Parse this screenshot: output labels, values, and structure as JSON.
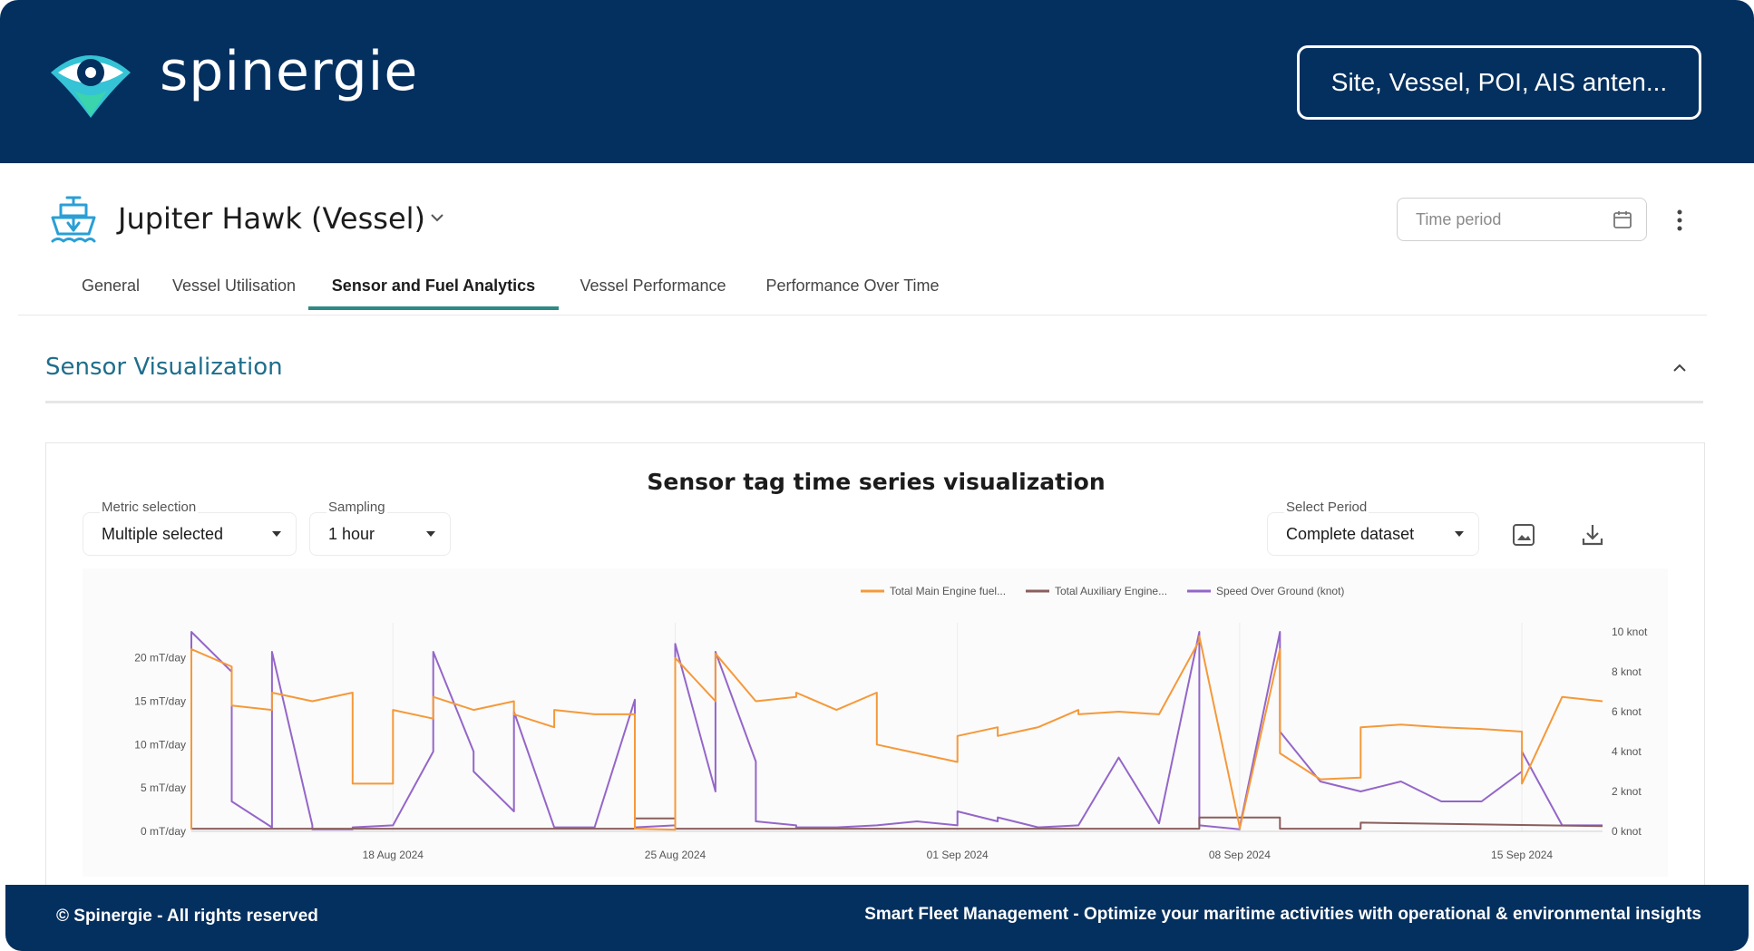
{
  "header": {
    "brand": "spinergie",
    "search_placeholder": "Site, Vessel, POI, AIS anten...",
    "logo_icon": "eye-pin-icon"
  },
  "vessel": {
    "title": "Jupiter Hawk (Vessel)",
    "icon": "ship-icon",
    "time_period_placeholder": "Time period"
  },
  "tabs": [
    {
      "label": "General",
      "active": false
    },
    {
      "label": "Vessel Utilisation",
      "active": false
    },
    {
      "label": "Sensor and Fuel Analytics",
      "active": true
    },
    {
      "label": "Vessel Performance",
      "active": false
    },
    {
      "label": "Performance Over Time",
      "active": false
    }
  ],
  "section": {
    "title": "Sensor Visualization"
  },
  "card": {
    "title": "Sensor tag time series visualization",
    "metric": {
      "label": "Metric selection",
      "value": "Multiple selected"
    },
    "sampling": {
      "label": "Sampling",
      "value": "1 hour"
    },
    "period": {
      "label": "Select Period",
      "value": "Complete dataset"
    }
  },
  "chart_data": {
    "type": "line",
    "legend_position": "top-right",
    "grid": "vertical",
    "x_ticks": [
      "18 Aug 2024",
      "25 Aug 2024",
      "01 Sep 2024",
      "08 Sep 2024",
      "15 Sep 2024"
    ],
    "x_range": [
      "2024-08-13",
      "2024-09-17"
    ],
    "y_left": {
      "ticks": [
        "0 mT/day",
        "5 mT/day",
        "10 mT/day",
        "15 mT/day",
        "20 mT/day"
      ],
      "range": [
        0,
        23
      ]
    },
    "y_right": {
      "ticks": [
        "0 knot",
        "2 knot",
        "4 knot",
        "6 knot",
        "8 knot",
        "10 knot"
      ],
      "range": [
        0,
        10
      ]
    },
    "series": [
      {
        "name": "Total Main Engine fuel...",
        "color": "#f5993a",
        "axis": "left",
        "x": [
          "2024-08-13",
          "2024-08-13",
          "2024-08-14",
          "2024-08-14",
          "2024-08-15",
          "2024-08-15",
          "2024-08-16",
          "2024-08-17",
          "2024-08-17",
          "2024-08-18",
          "2024-08-18",
          "2024-08-19",
          "2024-08-19",
          "2024-08-20",
          "2024-08-21",
          "2024-08-21",
          "2024-08-22",
          "2024-08-22",
          "2024-08-23",
          "2024-08-24",
          "2024-08-24",
          "2024-08-25",
          "2024-08-25",
          "2024-08-26",
          "2024-08-26",
          "2024-08-27",
          "2024-08-28",
          "2024-08-28",
          "2024-08-29",
          "2024-08-30",
          "2024-08-30",
          "2024-08-31",
          "2024-09-01",
          "2024-09-01",
          "2024-09-02",
          "2024-09-02",
          "2024-09-03",
          "2024-09-04",
          "2024-09-04",
          "2024-09-05",
          "2024-09-06",
          "2024-09-07",
          "2024-09-07",
          "2024-09-08",
          "2024-09-08",
          "2024-09-09",
          "2024-09-09",
          "2024-09-10",
          "2024-09-11",
          "2024-09-11",
          "2024-09-12",
          "2024-09-13",
          "2024-09-14",
          "2024-09-15",
          "2024-09-15",
          "2024-09-16",
          "2024-09-17"
        ],
        "values": [
          0.2,
          21,
          19,
          14.5,
          14,
          16,
          15,
          16,
          5.5,
          5.5,
          14,
          13,
          15.5,
          14,
          15,
          13.5,
          12,
          14,
          13.5,
          13.5,
          0.3,
          0.2,
          20,
          15,
          20.5,
          15,
          15.5,
          16,
          14,
          16,
          10,
          9,
          8,
          11,
          12,
          11,
          12,
          14,
          13.5,
          13.8,
          13.5,
          22,
          22.5,
          0.5,
          0.3,
          21,
          9,
          6,
          6.2,
          12,
          12.3,
          12,
          11.8,
          11.5,
          5.5,
          15.5,
          15
        ]
      },
      {
        "name": "Total Auxiliary Engine...",
        "color": "#8b5e5e",
        "axis": "left",
        "x": [
          "2024-08-13",
          "2024-08-24",
          "2024-08-24",
          "2024-08-25",
          "2024-08-25",
          "2024-09-07",
          "2024-09-07",
          "2024-09-09",
          "2024-09-09",
          "2024-09-11",
          "2024-09-11",
          "2024-09-17"
        ],
        "values": [
          0.3,
          0.3,
          1.5,
          1.5,
          0.3,
          0.3,
          1.6,
          1.6,
          0.3,
          0.3,
          1.0,
          0.6
        ]
      },
      {
        "name": "Speed Over Ground (knot)",
        "color": "#9466c9",
        "axis": "right",
        "x": [
          "2024-08-13",
          "2024-08-13",
          "2024-08-14",
          "2024-08-14",
          "2024-08-15",
          "2024-08-15",
          "2024-08-16",
          "2024-08-16",
          "2024-08-17",
          "2024-08-17",
          "2024-08-18",
          "2024-08-19",
          "2024-08-19",
          "2024-08-20",
          "2024-08-20",
          "2024-08-21",
          "2024-08-21",
          "2024-08-22",
          "2024-08-23",
          "2024-08-24",
          "2024-08-24",
          "2024-08-25",
          "2024-08-25",
          "2024-08-26",
          "2024-08-26",
          "2024-08-27",
          "2024-08-27",
          "2024-08-28",
          "2024-08-28",
          "2024-08-29",
          "2024-08-30",
          "2024-08-31",
          "2024-09-01",
          "2024-09-01",
          "2024-09-02",
          "2024-09-02",
          "2024-09-03",
          "2024-09-04",
          "2024-09-05",
          "2024-09-06",
          "2024-09-07",
          "2024-09-07",
          "2024-09-08",
          "2024-09-08",
          "2024-09-09",
          "2024-09-09",
          "2024-09-10",
          "2024-09-11",
          "2024-09-12",
          "2024-09-13",
          "2024-09-14",
          "2024-09-15",
          "2024-09-15",
          "2024-09-16",
          "2024-09-17"
        ],
        "values": [
          0.1,
          10,
          8,
          1.5,
          0.2,
          9,
          0.3,
          0.1,
          0.1,
          0.2,
          0.3,
          4,
          9,
          4,
          3,
          1,
          6,
          0.2,
          0.2,
          6.6,
          0.2,
          0.3,
          9.4,
          2,
          9,
          3.5,
          0.5,
          0.3,
          0.2,
          0.2,
          0.3,
          0.5,
          0.3,
          1,
          0.5,
          0.7,
          0.2,
          0.3,
          3.7,
          0.4,
          10,
          0.3,
          0.1,
          0.2,
          10,
          5,
          2.5,
          2,
          2.5,
          1.5,
          1.5,
          3,
          4,
          0.3,
          0.3
        ]
      }
    ]
  },
  "footer": {
    "left": "© Spinergie - All rights reserved",
    "right": "Smart Fleet Management - Optimize your maritime activities with operational & environmental insights"
  }
}
